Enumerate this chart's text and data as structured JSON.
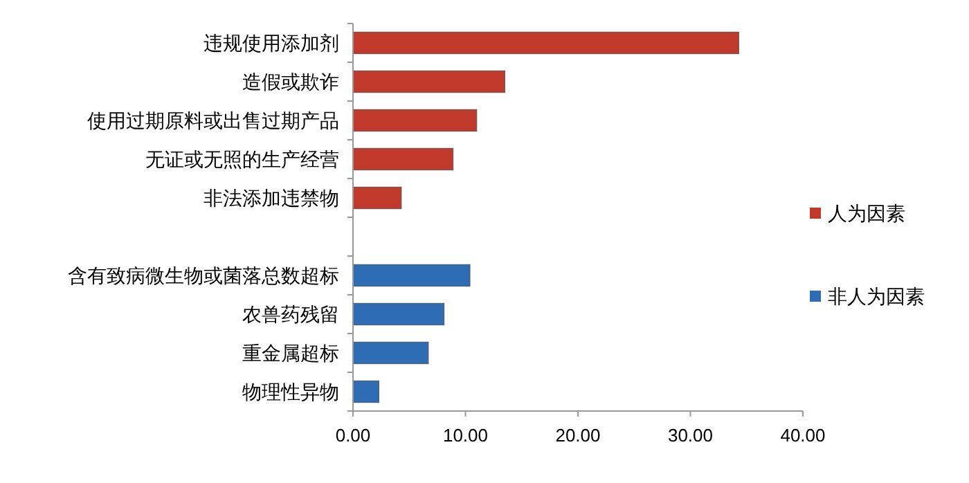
{
  "chart_data": {
    "type": "bar",
    "orientation": "horizontal",
    "categories": [
      "违规使用添加剂",
      "造假或欺诈",
      "使用过期原料或出售过期产品",
      "无证或无照的生产经营",
      "非法添加违禁物",
      null,
      "含有致病微生物或菌落总数超标",
      "农兽药残留",
      "重金属超标",
      "物理性异物"
    ],
    "series": [
      {
        "name": "人为因素",
        "color": "#c0392b",
        "values": [
          34.3,
          13.5,
          11.0,
          8.9,
          4.3,
          null,
          null,
          null,
          null,
          null
        ]
      },
      {
        "name": "非人为因素",
        "color": "#2e6db4",
        "values": [
          null,
          null,
          null,
          null,
          null,
          null,
          10.4,
          8.1,
          6.7,
          2.3
        ]
      }
    ],
    "xlim": [
      0,
      40
    ],
    "xticks": [
      {
        "value": 0,
        "label": "0.00"
      },
      {
        "value": 10,
        "label": "10.00"
      },
      {
        "value": 20,
        "label": "20.00"
      },
      {
        "value": 30,
        "label": "30.00"
      },
      {
        "value": 40,
        "label": "40.00"
      }
    ],
    "grid": false,
    "legend": "right"
  }
}
